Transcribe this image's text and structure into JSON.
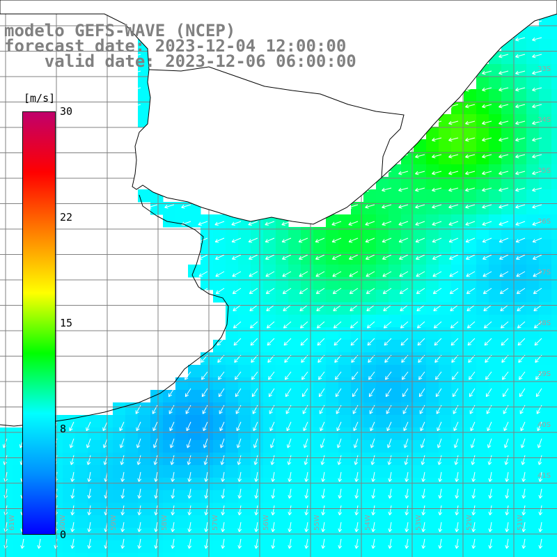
{
  "title": {
    "line1": "modelo GEFS-WAVE (NCEP)",
    "line2": "forecast date: 2023-12-04 12:00:00",
    "line3": "    valid date: 2023-12-06 06:00:00"
  },
  "colorbar": {
    "unit": "[m/s]",
    "ticks": [
      "30",
      "22",
      "15",
      "8",
      "0"
    ],
    "gradient": [
      "#0000ff",
      "#0090ff",
      "#00ffff",
      "#00ff00",
      "#ffff00",
      "#ff8000",
      "#ff0000",
      "#c0006c"
    ]
  },
  "lat_labels": [
    "33S",
    "34S",
    "35S",
    "36S",
    "37S",
    "38S",
    "39S",
    "40S",
    "41S"
  ],
  "lon_labels": [
    "61W",
    "60W",
    "59W",
    "58W",
    "57W",
    "56W",
    "55W",
    "54W",
    "53W",
    "52W",
    "51W"
  ],
  "colors": {
    "title": "#808080",
    "grid": "#808080",
    "land": "#ffffff",
    "coast": "#000000",
    "arrow": "#ffffff",
    "grid_label": "#a0a0a0"
  }
}
